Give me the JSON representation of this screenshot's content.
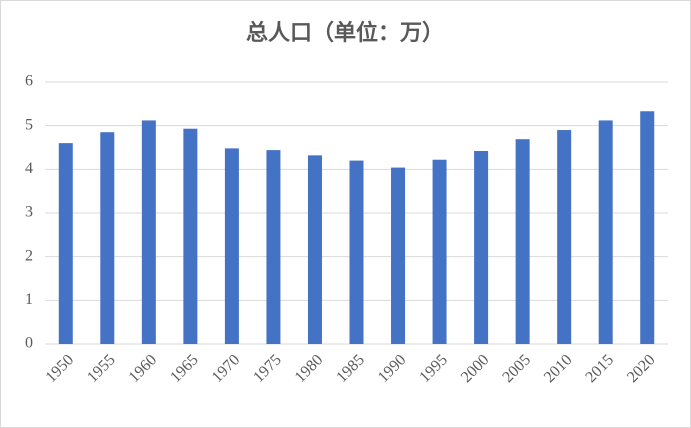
{
  "chart_data": {
    "type": "bar",
    "title": "总人口（单位：万）",
    "categories": [
      "1950",
      "1955",
      "1960",
      "1965",
      "1970",
      "1975",
      "1980",
      "1985",
      "1990",
      "1995",
      "2000",
      "2005",
      "2010",
      "2015",
      "2020"
    ],
    "values": [
      4.6,
      4.85,
      5.12,
      4.93,
      4.48,
      4.44,
      4.32,
      4.2,
      4.04,
      4.22,
      4.42,
      4.69,
      4.9,
      5.12,
      5.33
    ],
    "color": "#4472c4",
    "ylim": [
      0,
      6
    ],
    "yticks": [
      0,
      1,
      2,
      3,
      4,
      5,
      6
    ],
    "grid": true
  }
}
